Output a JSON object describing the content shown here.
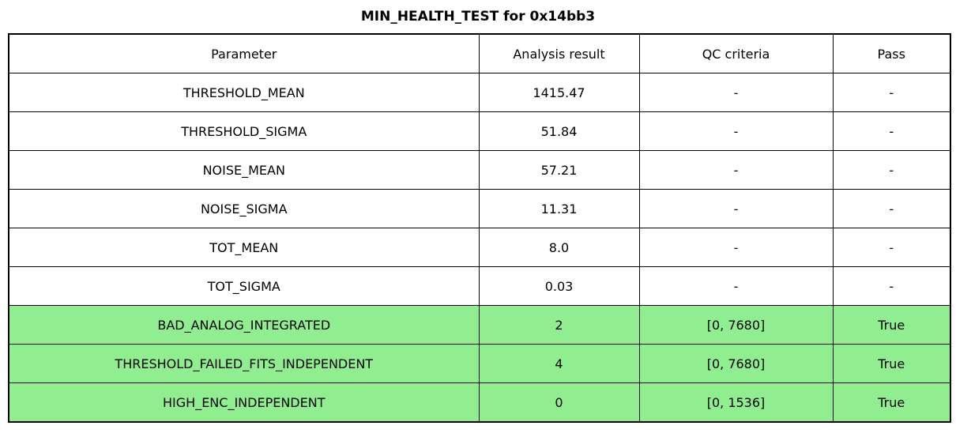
{
  "title": "MIN_HEALTH_TEST for 0x14bb3",
  "table": {
    "columns": [
      "Parameter",
      "Analysis result",
      "QC criteria",
      "Pass"
    ],
    "rows": [
      {
        "parameter": "THRESHOLD_MEAN",
        "result": "1415.47",
        "qc": "-",
        "pass": "-",
        "highlight": false
      },
      {
        "parameter": "THRESHOLD_SIGMA",
        "result": "51.84",
        "qc": "-",
        "pass": "-",
        "highlight": false
      },
      {
        "parameter": "NOISE_MEAN",
        "result": "57.21",
        "qc": "-",
        "pass": "-",
        "highlight": false
      },
      {
        "parameter": "NOISE_SIGMA",
        "result": "11.31",
        "qc": "-",
        "pass": "-",
        "highlight": false
      },
      {
        "parameter": "TOT_MEAN",
        "result": "8.0",
        "qc": "-",
        "pass": "-",
        "highlight": false
      },
      {
        "parameter": "TOT_SIGMA",
        "result": "0.03",
        "qc": "-",
        "pass": "-",
        "highlight": false
      },
      {
        "parameter": "BAD_ANALOG_INTEGRATED",
        "result": "2",
        "qc": "[0, 7680]",
        "pass": "True",
        "highlight": true
      },
      {
        "parameter": "THRESHOLD_FAILED_FITS_INDEPENDENT",
        "result": "4",
        "qc": "[0, 7680]",
        "pass": "True",
        "highlight": true
      },
      {
        "parameter": "HIGH_ENC_INDEPENDENT",
        "result": "0",
        "qc": "[0, 1536]",
        "pass": "True",
        "highlight": true
      }
    ]
  },
  "colors": {
    "pass_row_bg": "#90EE90",
    "border": "#000000",
    "text": "#000000",
    "background": "#ffffff"
  }
}
